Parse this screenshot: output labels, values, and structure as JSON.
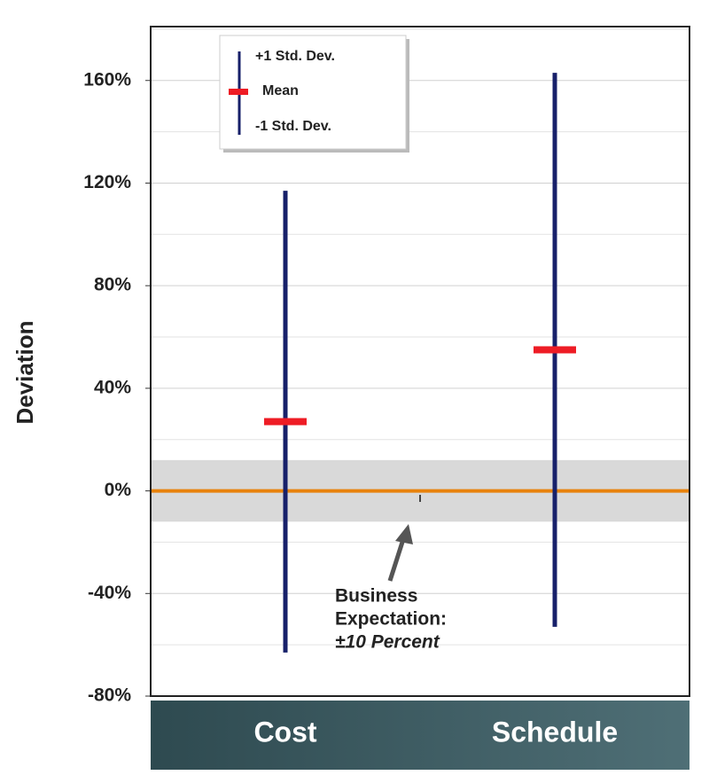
{
  "chart_data": {
    "type": "range",
    "y_label": "Deviation",
    "categories": [
      "Cost",
      "Schedule"
    ],
    "series": [
      {
        "name": "+1 Std. Dev.",
        "color": "#17206a",
        "values": [
          117,
          163
        ]
      },
      {
        "name": "Mean",
        "color": "#ee1c25",
        "values": [
          27,
          55
        ]
      },
      {
        "name": "-1 Std. Dev.",
        "color": "#17206a",
        "values": [
          -63,
          -53
        ]
      }
    ],
    "ylim": [
      -80,
      181
    ],
    "yticks": [
      {
        "value": 160,
        "label": "160%"
      },
      {
        "value": 120,
        "label": "120%"
      },
      {
        "value": 80,
        "label": "80%"
      },
      {
        "value": 40,
        "label": "40%"
      },
      {
        "value": 0,
        "label": "0%"
      },
      {
        "value": -40,
        "label": "-40%"
      },
      {
        "value": -80,
        "label": "-80%"
      }
    ],
    "minor_yticks": [
      180,
      140,
      100,
      60,
      20,
      -20,
      -60
    ],
    "grid": true,
    "band": [
      -12,
      12
    ],
    "reference_line": {
      "value": 0,
      "color": "#e8820c"
    },
    "annotation": {
      "lines": [
        "Business",
        "Expectation:",
        "±10 Percent"
      ]
    },
    "legend": "top-left"
  }
}
